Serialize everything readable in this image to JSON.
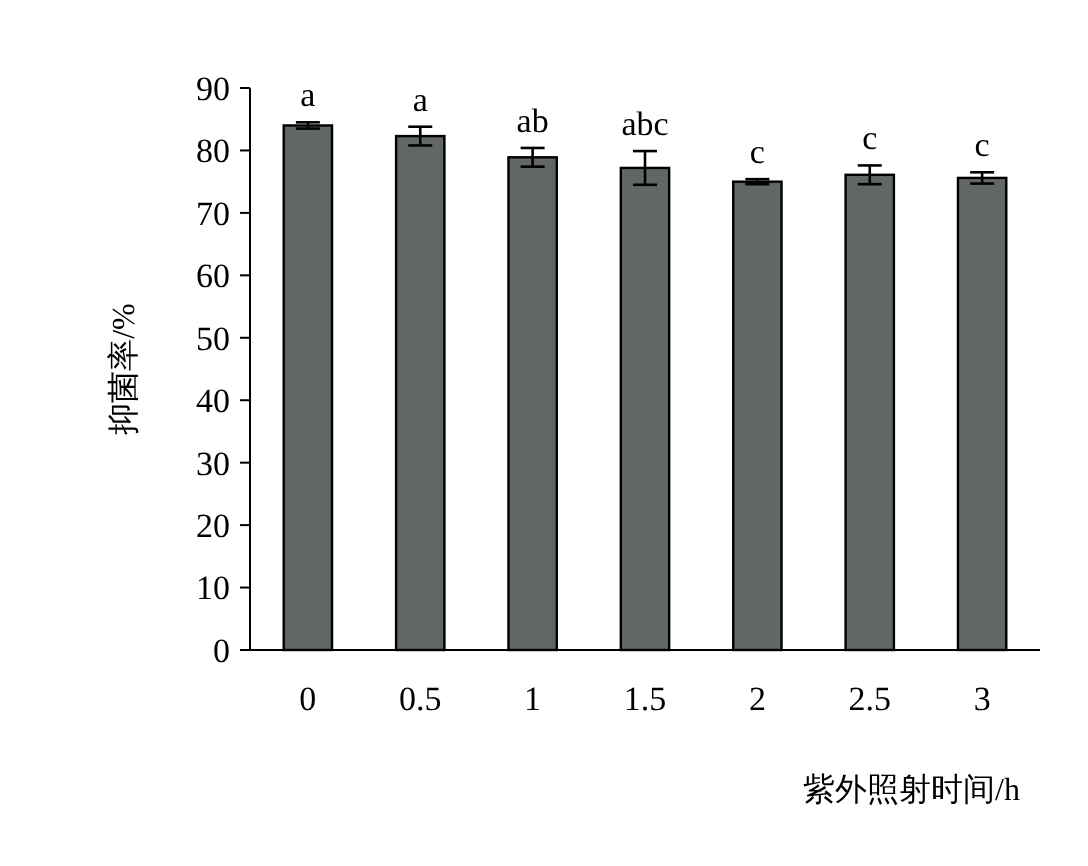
{
  "chart_data": {
    "type": "bar",
    "xlabel": "紫外照射时间/h",
    "ylabel": "抑菌率/%",
    "categories": [
      "0",
      "0.5",
      "1",
      "1.5",
      "2",
      "2.5",
      "3"
    ],
    "values": [
      84.0,
      82.3,
      78.9,
      77.2,
      75.0,
      76.1,
      75.6
    ],
    "errors": [
      0.5,
      1.5,
      1.5,
      2.7,
      0.4,
      1.5,
      0.9
    ],
    "color": "#626664",
    "ylim": [
      0,
      90
    ],
    "yticks": [
      0,
      10,
      20,
      30,
      40,
      50,
      60,
      70,
      80,
      90
    ],
    "grid": false,
    "annotations": [
      {
        "text": "a",
        "x": "0",
        "y": 84.5
      },
      {
        "text": "a",
        "x": "0.5",
        "y": 83.8
      },
      {
        "text": "ab",
        "x": "1",
        "y": 80.4
      },
      {
        "text": "abc",
        "x": "1.5",
        "y": 79.9
      },
      {
        "text": "c",
        "x": "2",
        "y": 75.4
      },
      {
        "text": "c",
        "x": "2.5",
        "y": 77.6
      },
      {
        "text": "c",
        "x": "3",
        "y": 76.5
      }
    ]
  }
}
